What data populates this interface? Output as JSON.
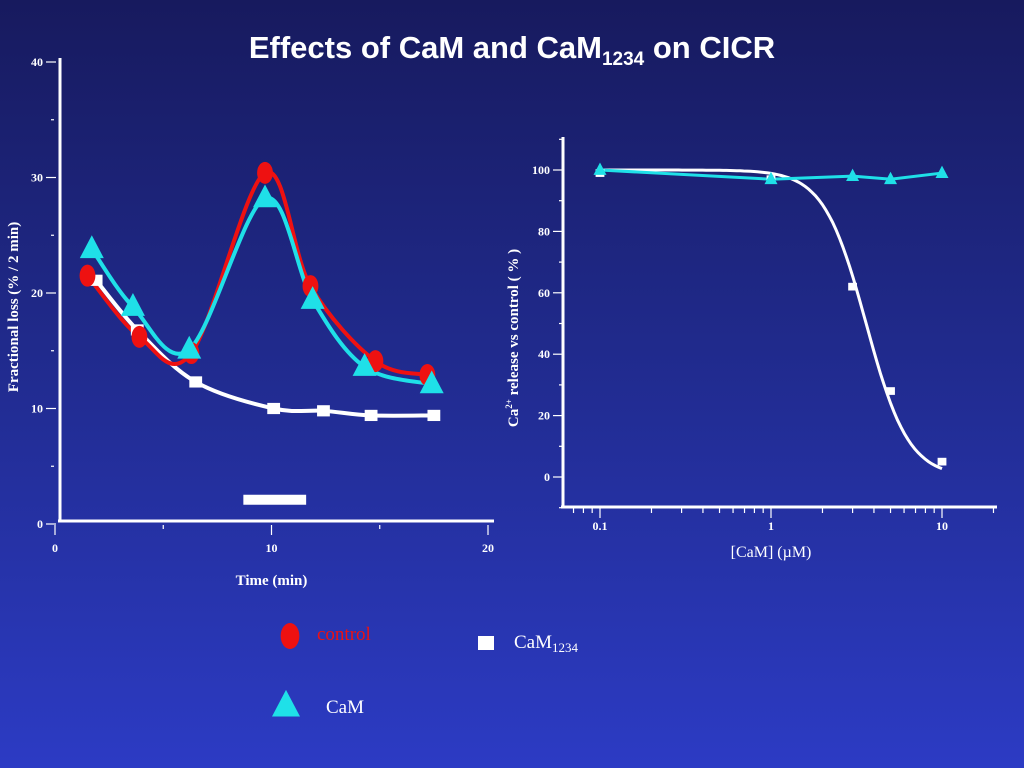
{
  "title": {
    "main": "Effects of CaM and CaM",
    "sub": "1234",
    "tail": " on CICR"
  },
  "colors": {
    "control": "#ee1111",
    "cam": "#1fe0e8",
    "cam1234": "#ffffff",
    "axis": "#ffffff"
  },
  "chart_data": [
    {
      "type": "line",
      "xlabel": "Time (min)",
      "ylabel": "Fractional loss (% / 2 min)",
      "xlim": [
        0,
        20
      ],
      "ylim": [
        0,
        40
      ],
      "xticks": [
        "0",
        "10",
        "20"
      ],
      "yticks": [
        "0",
        "10",
        "20",
        "30",
        "40"
      ],
      "grid": false,
      "bar_annotation": {
        "start": 8.7,
        "end": 11.6,
        "y": 2.1
      },
      "series": [
        {
          "name": "control",
          "key": "control",
          "marker": "circle",
          "x": [
            1.5,
            3.9,
            6.3,
            9.7,
            11.8,
            14.8,
            17.2
          ],
          "y": [
            21.5,
            16.2,
            14.8,
            30.4,
            20.6,
            14.1,
            12.9
          ]
        },
        {
          "name": "CaM",
          "key": "cam",
          "marker": "triangle",
          "x": [
            1.7,
            3.6,
            6.2,
            9.7,
            11.9,
            14.3,
            17.4
          ],
          "y": [
            23.8,
            18.8,
            15.1,
            28.2,
            19.4,
            13.6,
            12.1
          ]
        },
        {
          "name": "CaM1234",
          "key": "cam1234",
          "marker": "square",
          "x": [
            1.9,
            3.8,
            6.5,
            10.1,
            12.4,
            14.6,
            17.5
          ],
          "y": [
            21.1,
            16.8,
            12.3,
            10.0,
            9.8,
            9.4,
            9.4
          ]
        }
      ]
    },
    {
      "type": "line",
      "xscale": "log",
      "xlabel": "[CaM] (µM)",
      "ylabel": "Ca2+ release vs control ( % )",
      "xlim": [
        0.06,
        20
      ],
      "ylim": [
        -10,
        110
      ],
      "xticks": [
        "0.1",
        "1",
        "10"
      ],
      "yticks": [
        "0",
        "20",
        "40",
        "60",
        "80",
        "100"
      ],
      "grid": false,
      "series": [
        {
          "name": "CaM1234",
          "key": "cam1234",
          "marker": "square",
          "x": [
            0.1,
            1,
            3,
            5,
            10
          ],
          "y": [
            99,
            97,
            62,
            28,
            5
          ]
        },
        {
          "name": "CaM",
          "key": "cam",
          "marker": "triangle",
          "x": [
            0.1,
            1,
            3,
            5,
            10
          ],
          "y": [
            100,
            97,
            98,
            97,
            99
          ]
        }
      ]
    }
  ],
  "legend": {
    "control": "control",
    "cam": "CaM",
    "cam1234_main": "CaM",
    "cam1234_sub": "1234"
  },
  "left_ylabel_parts": {
    "text": "Fractional loss (% / 2 min)"
  },
  "right_ylabel_parts": {
    "pre": "Ca",
    "sup": "2+",
    "post": " release vs control ( % )"
  }
}
